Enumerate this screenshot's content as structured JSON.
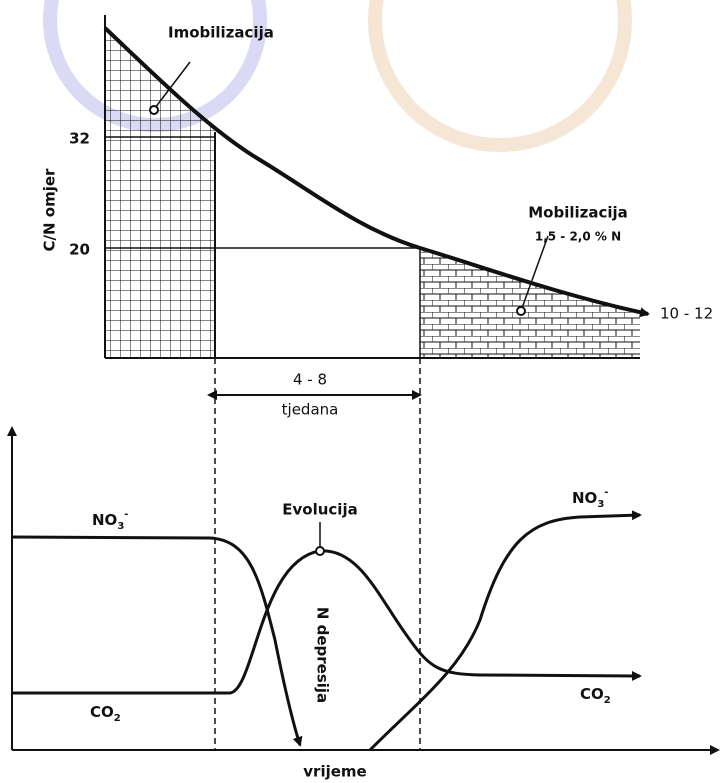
{
  "top": {
    "axis_label": "C/N omjer",
    "tick_32": "32",
    "tick_20": "20",
    "imobilizacija": "Imobilizacija",
    "mobilizacija": "Mobilizacija",
    "mobilizacija_note": "1,5 - 2,0 % N",
    "end_label": "10 - 12",
    "span": "4 - 8",
    "span_unit": "tjedana"
  },
  "bottom": {
    "no3_left": {
      "base": "NO",
      "sub": "3",
      "sup": "-"
    },
    "co2_left": {
      "base": "CO",
      "sub": "2"
    },
    "evolucija": "Evolucija",
    "n_depresija": "N depresija",
    "no3_right": {
      "base": "NO",
      "sub": "3",
      "sup": "-"
    },
    "co2_right": {
      "base": "CO",
      "sub": "2"
    },
    "x_label": "vrijeme"
  }
}
